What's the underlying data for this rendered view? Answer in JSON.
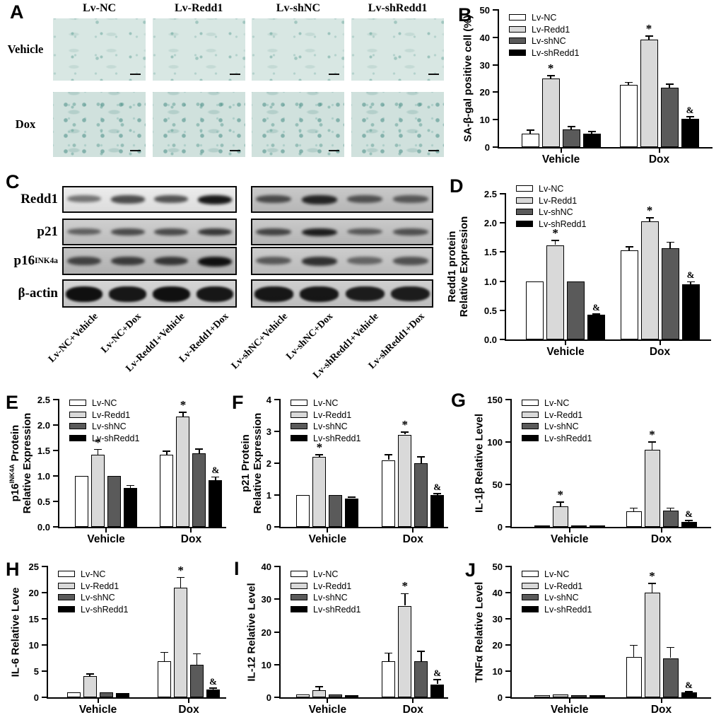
{
  "figure": {
    "series_labels": [
      "Lv-NC",
      "Lv-Redd1",
      "Lv-shNC",
      "Lv-shRedd1"
    ],
    "series_colors": [
      "#ffffff",
      "#d9d9d9",
      "#5a5a5a",
      "#000000"
    ],
    "group_labels": [
      "Vehicle",
      "Dox"
    ],
    "panel_letters": [
      "A",
      "B",
      "C",
      "D",
      "E",
      "F",
      "G",
      "H",
      "I",
      "J"
    ],
    "significance_symbols": [
      "*",
      "&"
    ]
  },
  "panelA": {
    "letter": "A",
    "col_labels": [
      "Lv-NC",
      "Lv-Redd1",
      "Lv-shNC",
      "Lv-shRedd1"
    ],
    "row_labels": [
      "Vehicle",
      "Dox"
    ]
  },
  "panelC": {
    "letter": "C",
    "row_labels": [
      "Redd1",
      "p21",
      "p16^INK4a",
      "β-actin"
    ],
    "lane_labels": [
      "Lv-NC+Vehicle",
      "Lv-NC+Dox",
      "Lv-Redd1+Vehicle",
      "Lv-Redd1+Dox",
      "Lv-shNC+Vehicle",
      "Lv-shNC+Dox",
      "Lv-shRedd1+Vehicle",
      "Lv-shRedd1+Dox"
    ],
    "band_intensity": [
      [
        0.35,
        0.6,
        0.55,
        0.95,
        0.55,
        0.85,
        0.5,
        0.45
      ],
      [
        0.4,
        0.55,
        0.55,
        0.7,
        0.6,
        0.9,
        0.45,
        0.5
      ],
      [
        0.6,
        0.65,
        0.7,
        1.0,
        0.45,
        0.75,
        0.35,
        0.5
      ],
      [
        1.0,
        0.95,
        1.0,
        0.95,
        0.95,
        0.95,
        0.9,
        0.9
      ]
    ]
  },
  "chart_data": [
    {
      "id": "B",
      "type": "bar",
      "ylabel_lines": [
        "SA-β-gal positive cell (%)"
      ],
      "ylim": [
        0,
        50
      ],
      "ytick": 10,
      "ydecimals": 0,
      "categories": [
        "Vehicle",
        "Dox"
      ],
      "legend_position": "top-left-inside",
      "grid": false,
      "series": [
        {
          "name": "Lv-NC",
          "color": "#ffffff",
          "values": [
            5,
            22.7
          ],
          "errors": [
            1.2,
            0.9
          ],
          "annotations": [
            "",
            ""
          ]
        },
        {
          "name": "Lv-Redd1",
          "color": "#d9d9d9",
          "values": [
            25,
            39.2
          ],
          "errors": [
            1.1,
            1.3
          ],
          "annotations": [
            "*",
            "*"
          ]
        },
        {
          "name": "Lv-shNC",
          "color": "#5a5a5a",
          "values": [
            6.4,
            21.7
          ],
          "errors": [
            1,
            1.2
          ],
          "annotations": [
            "",
            ""
          ]
        },
        {
          "name": "Lv-shRedd1",
          "color": "#000000",
          "values": [
            5,
            10.2
          ],
          "errors": [
            0.7,
            0.9
          ],
          "annotations": [
            "",
            "&"
          ]
        }
      ]
    },
    {
      "id": "D",
      "type": "bar",
      "ylabel_lines": [
        "Redd1 protein",
        "Relative Expression"
      ],
      "ylim": [
        0,
        2.5
      ],
      "ytick": 0.5,
      "ydecimals": 1,
      "categories": [
        "Vehicle",
        "Dox"
      ],
      "legend_position": "top-left-inside",
      "grid": false,
      "series": [
        {
          "name": "Lv-NC",
          "color": "#ffffff",
          "values": [
            1.0,
            1.53
          ],
          "errors": [
            0,
            0.06
          ],
          "annotations": [
            "",
            ""
          ]
        },
        {
          "name": "Lv-Redd1",
          "color": "#d9d9d9",
          "values": [
            1.62,
            2.03
          ],
          "errors": [
            0.08,
            0.06
          ],
          "annotations": [
            "*",
            "*"
          ]
        },
        {
          "name": "Lv-shNC",
          "color": "#5a5a5a",
          "values": [
            1.0,
            1.57
          ],
          "errors": [
            0,
            0.1
          ],
          "annotations": [
            "",
            ""
          ]
        },
        {
          "name": "Lv-shRedd1",
          "color": "#000000",
          "values": [
            0.42,
            0.95
          ],
          "errors": [
            0.02,
            0.04
          ],
          "annotations": [
            "&",
            "&"
          ]
        }
      ]
    },
    {
      "id": "E",
      "type": "bar",
      "ylabel_lines": [
        "p16^INK4A Protein",
        "Relative Expression"
      ],
      "ylim": [
        0,
        2.5
      ],
      "ytick": 0.5,
      "ydecimals": 1,
      "categories": [
        "Vehicle",
        "Dox"
      ],
      "legend_position": "top-left-inside",
      "grid": false,
      "series": [
        {
          "name": "Lv-NC",
          "color": "#ffffff",
          "values": [
            1.0,
            1.42
          ],
          "errors": [
            0,
            0.07
          ],
          "annotations": [
            "",
            ""
          ]
        },
        {
          "name": "Lv-Redd1",
          "color": "#d9d9d9",
          "values": [
            1.42,
            2.17
          ],
          "errors": [
            0.1,
            0.08
          ],
          "annotations": [
            "*",
            "*"
          ]
        },
        {
          "name": "Lv-shNC",
          "color": "#5a5a5a",
          "values": [
            1.0,
            1.44
          ],
          "errors": [
            0,
            0.09
          ],
          "annotations": [
            "",
            ""
          ]
        },
        {
          "name": "Lv-shRedd1",
          "color": "#000000",
          "values": [
            0.76,
            0.92
          ],
          "errors": [
            0.05,
            0.06
          ],
          "annotations": [
            "",
            "&"
          ]
        }
      ]
    },
    {
      "id": "F",
      "type": "bar",
      "ylabel_lines": [
        "p21 Protein",
        "Relative Expression"
      ],
      "ylim": [
        0,
        4
      ],
      "ytick": 1,
      "ydecimals": 0,
      "categories": [
        "Vehicle",
        "Dox"
      ],
      "legend_position": "top-left-inside",
      "grid": false,
      "series": [
        {
          "name": "Lv-NC",
          "color": "#ffffff",
          "values": [
            1.0,
            2.1
          ],
          "errors": [
            0,
            0.17
          ],
          "annotations": [
            "",
            ""
          ]
        },
        {
          "name": "Lv-Redd1",
          "color": "#d9d9d9",
          "values": [
            2.2,
            2.9
          ],
          "errors": [
            0.07,
            0.08
          ],
          "annotations": [
            "*",
            "*"
          ]
        },
        {
          "name": "Lv-shNC",
          "color": "#5a5a5a",
          "values": [
            1.0,
            2.0
          ],
          "errors": [
            0,
            0.2
          ],
          "annotations": [
            "",
            ""
          ]
        },
        {
          "name": "Lv-shRedd1",
          "color": "#000000",
          "values": [
            0.9,
            1.0
          ],
          "errors": [
            0.03,
            0.04
          ],
          "annotations": [
            "",
            "&"
          ]
        }
      ]
    },
    {
      "id": "G",
      "type": "bar",
      "ylabel_lines": [
        "IL-1β Relative Level"
      ],
      "ylim": [
        0,
        150
      ],
      "ytick": 50,
      "ydecimals": 0,
      "categories": [
        "Vehicle",
        "Dox"
      ],
      "legend_position": "top-left-inside",
      "grid": false,
      "series": [
        {
          "name": "Lv-NC",
          "color": "#ffffff",
          "values": [
            1,
            18
          ],
          "errors": [
            0.3,
            4
          ],
          "annotations": [
            "",
            ""
          ]
        },
        {
          "name": "Lv-Redd1",
          "color": "#d9d9d9",
          "values": [
            24,
            91
          ],
          "errors": [
            5,
            9
          ],
          "annotations": [
            "*",
            "*"
          ]
        },
        {
          "name": "Lv-shNC",
          "color": "#5a5a5a",
          "values": [
            1,
            19
          ],
          "errors": [
            0.3,
            3
          ],
          "annotations": [
            "",
            ""
          ]
        },
        {
          "name": "Lv-shRedd1",
          "color": "#000000",
          "values": [
            1.5,
            6
          ],
          "errors": [
            0.3,
            1.5
          ],
          "annotations": [
            "",
            "&"
          ]
        }
      ]
    },
    {
      "id": "H",
      "type": "bar",
      "ylabel_lines": [
        "IL-6 Relative Leve"
      ],
      "ylim": [
        0,
        25
      ],
      "ytick": 5,
      "ydecimals": 0,
      "categories": [
        "Vehicle",
        "Dox"
      ],
      "legend_position": "top-left-inside",
      "grid": false,
      "series": [
        {
          "name": "Lv-NC",
          "color": "#ffffff",
          "values": [
            1,
            6.9
          ],
          "errors": [
            0.12,
            1.7
          ],
          "annotations": [
            "",
            ""
          ]
        },
        {
          "name": "Lv-Redd1",
          "color": "#d9d9d9",
          "values": [
            4.1,
            21
          ],
          "errors": [
            0.35,
            1.9
          ],
          "annotations": [
            "",
            "*"
          ]
        },
        {
          "name": "Lv-shNC",
          "color": "#5a5a5a",
          "values": [
            0.9,
            6.2
          ],
          "errors": [
            0.1,
            2.1
          ],
          "annotations": [
            "",
            ""
          ]
        },
        {
          "name": "Lv-shRedd1",
          "color": "#000000",
          "values": [
            0.8,
            1.5
          ],
          "errors": [
            0.1,
            0.25
          ],
          "annotations": [
            "",
            "&"
          ]
        }
      ]
    },
    {
      "id": "I",
      "type": "bar",
      "ylabel_lines": [
        "IL-12 Relative Level"
      ],
      "ylim": [
        0,
        40
      ],
      "ytick": 10,
      "ydecimals": 0,
      "categories": [
        "Vehicle",
        "Dox"
      ],
      "legend_position": "top-left-inside",
      "grid": false,
      "series": [
        {
          "name": "Lv-NC",
          "color": "#ffffff",
          "values": [
            0.8,
            11
          ],
          "errors": [
            0.15,
            2.5
          ],
          "annotations": [
            "",
            ""
          ]
        },
        {
          "name": "Lv-Redd1",
          "color": "#d9d9d9",
          "values": [
            2.2,
            28
          ],
          "errors": [
            1,
            3.7
          ],
          "annotations": [
            "",
            "*"
          ]
        },
        {
          "name": "Lv-shNC",
          "color": "#5a5a5a",
          "values": [
            0.8,
            11
          ],
          "errors": [
            0.15,
            3
          ],
          "annotations": [
            "",
            ""
          ]
        },
        {
          "name": "Lv-shRedd1",
          "color": "#000000",
          "values": [
            0.6,
            4
          ],
          "errors": [
            0.12,
            1.4
          ],
          "annotations": [
            "",
            "&"
          ]
        }
      ]
    },
    {
      "id": "J",
      "type": "bar",
      "ylabel_lines": [
        "TNFα Relative Level"
      ],
      "ylim": [
        0,
        50
      ],
      "ytick": 10,
      "ydecimals": 0,
      "categories": [
        "Vehicle",
        "Dox"
      ],
      "legend_position": "top-left-inside",
      "grid": false,
      "series": [
        {
          "name": "Lv-NC",
          "color": "#ffffff",
          "values": [
            0.8,
            15.5
          ],
          "errors": [
            0.12,
            4.4
          ],
          "annotations": [
            "",
            ""
          ]
        },
        {
          "name": "Lv-Redd1",
          "color": "#d9d9d9",
          "values": [
            1.2,
            40
          ],
          "errors": [
            0.3,
            3.5
          ],
          "annotations": [
            "",
            "*"
          ]
        },
        {
          "name": "Lv-shNC",
          "color": "#5a5a5a",
          "values": [
            0.8,
            15
          ],
          "errors": [
            0.12,
            4
          ],
          "annotations": [
            "",
            ""
          ]
        },
        {
          "name": "Lv-shRedd1",
          "color": "#000000",
          "values": [
            0.7,
            1.8
          ],
          "errors": [
            0.1,
            0.4
          ],
          "annotations": [
            "",
            "&"
          ]
        }
      ]
    }
  ]
}
